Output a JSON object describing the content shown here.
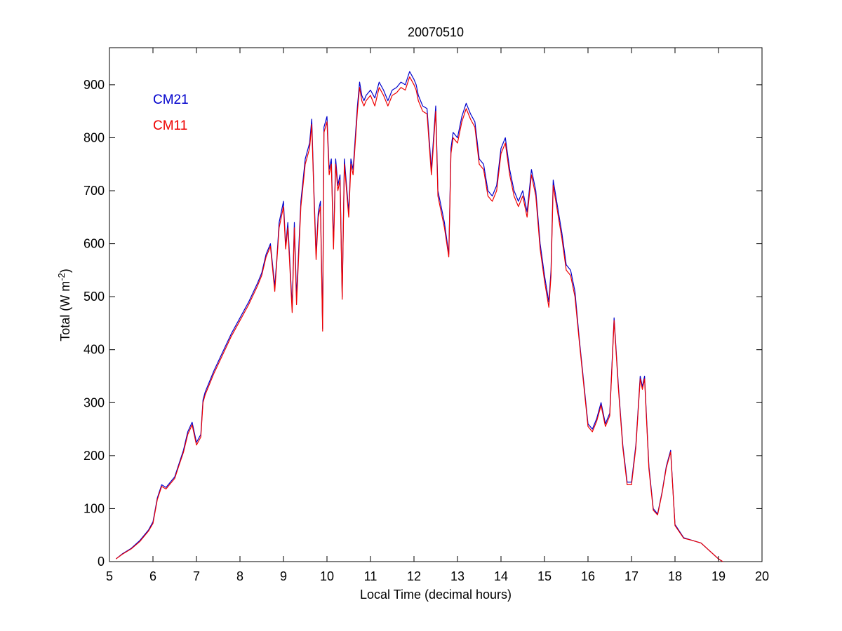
{
  "chart_data": {
    "type": "line",
    "title": "20070510",
    "xlabel": "Local Time (decimal hours)",
    "ylabel_main": "Total (W m",
    "ylabel_sup": "-2",
    "ylabel_close": ")",
    "xlim": [
      5,
      20
    ],
    "ylim": [
      0,
      970
    ],
    "xticks": [
      5,
      6,
      7,
      8,
      9,
      10,
      11,
      12,
      13,
      14,
      15,
      16,
      17,
      18,
      19,
      20
    ],
    "yticks": [
      0,
      100,
      200,
      300,
      400,
      500,
      600,
      700,
      800,
      900
    ],
    "grid": false,
    "legend_position": "top-left",
    "series": [
      {
        "name": "CM21",
        "color": "#0000cc",
        "x": [
          5.15,
          5.3,
          5.5,
          5.7,
          5.9,
          6.0,
          6.1,
          6.2,
          6.3,
          6.4,
          6.5,
          6.6,
          6.7,
          6.8,
          6.9,
          7.0,
          7.1,
          7.15,
          7.2,
          7.3,
          7.4,
          7.6,
          7.8,
          8.0,
          8.2,
          8.4,
          8.5,
          8.6,
          8.7,
          8.8,
          8.85,
          8.9,
          9.0,
          9.05,
          9.1,
          9.2,
          9.25,
          9.3,
          9.4,
          9.5,
          9.6,
          9.65,
          9.7,
          9.75,
          9.8,
          9.85,
          9.9,
          9.93,
          10.0,
          10.05,
          10.1,
          10.15,
          10.2,
          10.25,
          10.3,
          10.35,
          10.4,
          10.45,
          10.5,
          10.55,
          10.6,
          10.7,
          10.75,
          10.8,
          10.85,
          10.9,
          11.0,
          11.1,
          11.2,
          11.3,
          11.4,
          11.5,
          11.6,
          11.7,
          11.8,
          11.9,
          12.0,
          12.05,
          12.1,
          12.2,
          12.3,
          12.4,
          12.5,
          12.55,
          12.6,
          12.7,
          12.8,
          12.85,
          12.9,
          13.0,
          13.1,
          13.2,
          13.3,
          13.4,
          13.5,
          13.6,
          13.7,
          13.8,
          13.9,
          14.0,
          14.1,
          14.2,
          14.3,
          14.4,
          14.5,
          14.6,
          14.7,
          14.8,
          14.9,
          15.0,
          15.1,
          15.15,
          15.2,
          15.3,
          15.4,
          15.5,
          15.6,
          15.7,
          15.8,
          15.9,
          16.0,
          16.1,
          16.2,
          16.3,
          16.4,
          16.5,
          16.6,
          16.7,
          16.8,
          16.9,
          17.0,
          17.1,
          17.2,
          17.25,
          17.3,
          17.4,
          17.5,
          17.6,
          17.7,
          17.8,
          17.9,
          18.0,
          18.2,
          18.4,
          18.6,
          18.8,
          19.0,
          19.1
        ],
        "y": [
          5,
          15,
          25,
          40,
          60,
          75,
          120,
          145,
          140,
          150,
          160,
          185,
          210,
          245,
          263,
          225,
          240,
          305,
          320,
          340,
          360,
          395,
          430,
          460,
          490,
          525,
          545,
          580,
          600,
          520,
          575,
          640,
          680,
          595,
          640,
          480,
          640,
          500,
          680,
          760,
          790,
          835,
          700,
          580,
          660,
          680,
          440,
          820,
          840,
          740,
          760,
          600,
          760,
          710,
          730,
          500,
          760,
          710,
          660,
          760,
          740,
          860,
          905,
          880,
          870,
          880,
          890,
          875,
          905,
          890,
          870,
          890,
          895,
          905,
          900,
          925,
          910,
          900,
          880,
          860,
          855,
          740,
          860,
          700,
          680,
          640,
          580,
          780,
          810,
          800,
          840,
          865,
          845,
          830,
          760,
          750,
          700,
          690,
          710,
          780,
          800,
          740,
          700,
          680,
          700,
          660,
          740,
          700,
          600,
          540,
          490,
          550,
          720,
          670,
          620,
          560,
          550,
          510,
          420,
          340,
          260,
          250,
          270,
          300,
          260,
          280,
          460,
          330,
          220,
          150,
          150,
          220,
          350,
          330,
          350,
          180,
          100,
          90,
          130,
          180,
          210,
          70,
          45,
          40,
          35,
          20,
          5,
          0
        ]
      },
      {
        "name": "CM11",
        "color": "#ee0000",
        "x": [
          5.15,
          5.3,
          5.5,
          5.7,
          5.9,
          6.0,
          6.1,
          6.2,
          6.3,
          6.4,
          6.5,
          6.6,
          6.7,
          6.8,
          6.9,
          7.0,
          7.1,
          7.15,
          7.2,
          7.3,
          7.4,
          7.6,
          7.8,
          8.0,
          8.2,
          8.4,
          8.5,
          8.6,
          8.7,
          8.8,
          8.85,
          8.9,
          9.0,
          9.05,
          9.1,
          9.2,
          9.25,
          9.3,
          9.4,
          9.5,
          9.6,
          9.65,
          9.7,
          9.75,
          9.8,
          9.85,
          9.9,
          9.93,
          10.0,
          10.05,
          10.1,
          10.15,
          10.2,
          10.25,
          10.3,
          10.35,
          10.4,
          10.45,
          10.5,
          10.55,
          10.6,
          10.7,
          10.75,
          10.8,
          10.85,
          10.9,
          11.0,
          11.1,
          11.2,
          11.3,
          11.4,
          11.5,
          11.6,
          11.7,
          11.8,
          11.9,
          12.0,
          12.05,
          12.1,
          12.2,
          12.3,
          12.4,
          12.5,
          12.55,
          12.6,
          12.7,
          12.8,
          12.85,
          12.9,
          13.0,
          13.1,
          13.2,
          13.3,
          13.4,
          13.5,
          13.6,
          13.7,
          13.8,
          13.9,
          14.0,
          14.1,
          14.2,
          14.3,
          14.4,
          14.5,
          14.6,
          14.7,
          14.8,
          14.9,
          15.0,
          15.1,
          15.15,
          15.2,
          15.3,
          15.4,
          15.5,
          15.6,
          15.7,
          15.8,
          15.9,
          16.0,
          16.1,
          16.2,
          16.3,
          16.4,
          16.5,
          16.6,
          16.7,
          16.8,
          16.9,
          17.0,
          17.1,
          17.2,
          17.25,
          17.3,
          17.4,
          17.5,
          17.6,
          17.7,
          17.8,
          17.9,
          18.0,
          18.2,
          18.4,
          18.6,
          18.8,
          19.0,
          19.1
        ],
        "y": [
          5,
          14,
          24,
          38,
          58,
          72,
          117,
          142,
          137,
          147,
          157,
          182,
          206,
          240,
          258,
          220,
          235,
          300,
          315,
          335,
          355,
          390,
          425,
          455,
          485,
          520,
          540,
          575,
          595,
          510,
          570,
          630,
          670,
          590,
          630,
          470,
          630,
          485,
          670,
          750,
          780,
          825,
          690,
          570,
          650,
          670,
          435,
          810,
          830,
          730,
          750,
          590,
          750,
          700,
          720,
          495,
          750,
          700,
          650,
          750,
          730,
          850,
          895,
          870,
          860,
          870,
          880,
          860,
          895,
          880,
          860,
          880,
          885,
          895,
          890,
          915,
          900,
          890,
          870,
          850,
          845,
          730,
          850,
          690,
          670,
          630,
          575,
          770,
          800,
          790,
          830,
          855,
          835,
          820,
          750,
          740,
          690,
          680,
          700,
          770,
          790,
          730,
          690,
          670,
          690,
          650,
          730,
          690,
          590,
          530,
          480,
          540,
          710,
          660,
          610,
          550,
          540,
          500,
          415,
          335,
          255,
          245,
          265,
          295,
          255,
          275,
          455,
          325,
          215,
          145,
          145,
          215,
          345,
          325,
          345,
          175,
          97,
          88,
          128,
          177,
          207,
          68,
          44,
          40,
          35,
          20,
          5,
          0
        ]
      }
    ]
  }
}
